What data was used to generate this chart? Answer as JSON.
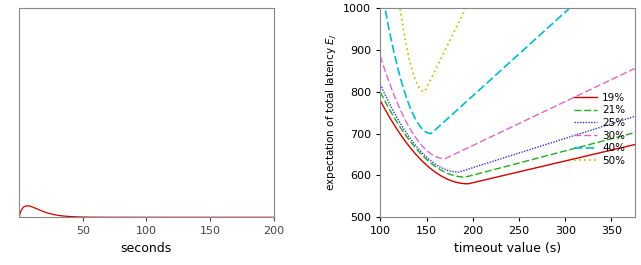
{
  "left_xlim": [
    0,
    200
  ],
  "left_xlabel": "seconds",
  "right_xlim": [
    100,
    375
  ],
  "right_ylim": [
    500,
    1000
  ],
  "right_xlabel": "timeout value (s)",
  "right_xticks": [
    100,
    150,
    200,
    250,
    300,
    350
  ],
  "right_yticks": [
    500,
    600,
    700,
    800,
    900,
    1000
  ],
  "legend_labels": [
    "19%",
    "21%",
    "25%",
    "30%",
    "40%",
    "50%"
  ],
  "legend_colors": [
    "#cc0000",
    "#22aa22",
    "#3333cc",
    "#dd66cc",
    "#00bbcc",
    "#bbbb00"
  ],
  "pdf_color": "#cc0000",
  "pdf_shape": 1.8,
  "pdf_scale": 8.0,
  "pdf_peak_scale": 0.04
}
